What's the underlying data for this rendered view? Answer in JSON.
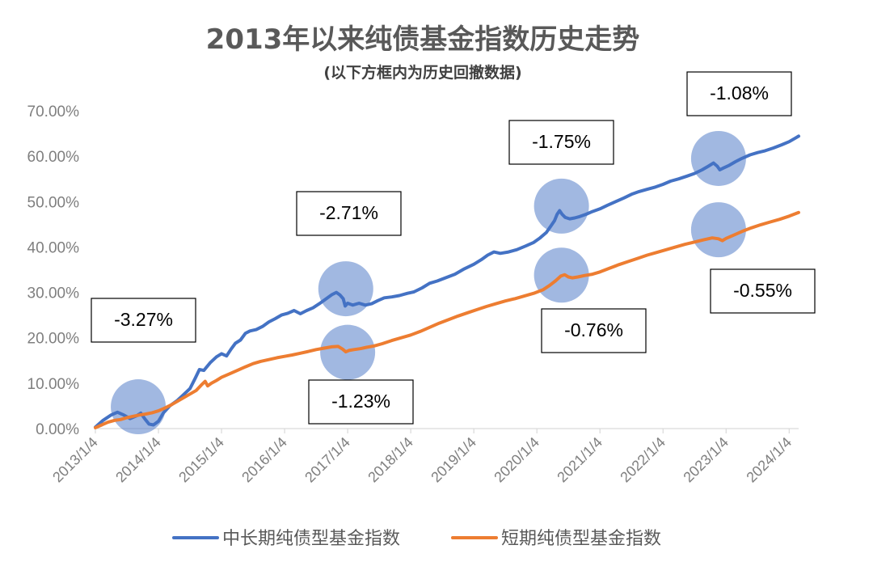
{
  "chart_data": {
    "type": "line",
    "title": "2013年以来纯债基金指数历史走势",
    "subtitle": "(以下方框内为历史回撤数据)",
    "xlabel": "",
    "ylabel": "",
    "ylim": [
      0,
      70
    ],
    "y_ticks": [
      "0.00%",
      "10.00%",
      "20.00%",
      "30.00%",
      "40.00%",
      "50.00%",
      "60.00%",
      "70.00%"
    ],
    "x_ticks": [
      "2013/1/4",
      "2014/1/4",
      "2015/1/4",
      "2016/1/4",
      "2017/1/4",
      "2018/1/4",
      "2019/1/4",
      "2020/1/4",
      "2021/1/4",
      "2022/1/4",
      "2023/1/4",
      "2024/1/4"
    ],
    "xlim": [
      2013.0,
      2024.15
    ],
    "grid": false,
    "legend_position": "bottom",
    "colors": {
      "long": "#4472c4",
      "short": "#ed7d31",
      "circle": "#4472c4"
    },
    "series": [
      {
        "name": "中长期纯债型基金指数",
        "color": "#4472c4",
        "points": [
          [
            2013.0,
            0.3
          ],
          [
            2013.12,
            1.8
          ],
          [
            2013.25,
            3.0
          ],
          [
            2013.35,
            3.6
          ],
          [
            2013.45,
            3.0
          ],
          [
            2013.55,
            2.2
          ],
          [
            2013.65,
            2.8
          ],
          [
            2013.72,
            3.4
          ],
          [
            2013.78,
            2.2
          ],
          [
            2013.85,
            1.0
          ],
          [
            2013.92,
            0.8
          ],
          [
            2014.0,
            1.6
          ],
          [
            2014.08,
            3.5
          ],
          [
            2014.18,
            5.0
          ],
          [
            2014.3,
            6.2
          ],
          [
            2014.4,
            7.5
          ],
          [
            2014.5,
            8.8
          ],
          [
            2014.58,
            11.0
          ],
          [
            2014.65,
            13.0
          ],
          [
            2014.72,
            12.8
          ],
          [
            2014.82,
            14.5
          ],
          [
            2014.92,
            15.8
          ],
          [
            2015.0,
            16.5
          ],
          [
            2015.08,
            16.0
          ],
          [
            2015.15,
            17.5
          ],
          [
            2015.22,
            18.8
          ],
          [
            2015.3,
            19.5
          ],
          [
            2015.38,
            21.0
          ],
          [
            2015.45,
            21.5
          ],
          [
            2015.55,
            21.8
          ],
          [
            2015.65,
            22.5
          ],
          [
            2015.75,
            23.5
          ],
          [
            2015.85,
            24.2
          ],
          [
            2015.95,
            25.0
          ],
          [
            2016.05,
            25.4
          ],
          [
            2016.15,
            26.0
          ],
          [
            2016.25,
            25.3
          ],
          [
            2016.35,
            26.0
          ],
          [
            2016.45,
            26.6
          ],
          [
            2016.55,
            27.5
          ],
          [
            2016.65,
            28.5
          ],
          [
            2016.75,
            29.5
          ],
          [
            2016.82,
            30.0
          ],
          [
            2016.88,
            29.4
          ],
          [
            2016.93,
            28.6
          ],
          [
            2016.96,
            27.0
          ],
          [
            2017.0,
            27.6
          ],
          [
            2017.08,
            27.2
          ],
          [
            2017.18,
            27.6
          ],
          [
            2017.28,
            27.2
          ],
          [
            2017.38,
            27.5
          ],
          [
            2017.48,
            28.2
          ],
          [
            2017.58,
            28.8
          ],
          [
            2017.7,
            29.0
          ],
          [
            2017.82,
            29.3
          ],
          [
            2017.95,
            29.8
          ],
          [
            2018.05,
            30.1
          ],
          [
            2018.18,
            31.0
          ],
          [
            2018.3,
            32.0
          ],
          [
            2018.42,
            32.5
          ],
          [
            2018.55,
            33.2
          ],
          [
            2018.7,
            34.0
          ],
          [
            2018.85,
            35.2
          ],
          [
            2019.0,
            36.2
          ],
          [
            2019.12,
            37.2
          ],
          [
            2019.22,
            38.2
          ],
          [
            2019.32,
            38.9
          ],
          [
            2019.42,
            38.6
          ],
          [
            2019.55,
            38.9
          ],
          [
            2019.68,
            39.4
          ],
          [
            2019.82,
            40.2
          ],
          [
            2019.95,
            41.0
          ],
          [
            2020.05,
            42.0
          ],
          [
            2020.15,
            43.2
          ],
          [
            2020.22,
            44.6
          ],
          [
            2020.28,
            45.8
          ],
          [
            2020.32,
            47.2
          ],
          [
            2020.36,
            48.0
          ],
          [
            2020.4,
            47.2
          ],
          [
            2020.45,
            46.5
          ],
          [
            2020.52,
            46.2
          ],
          [
            2020.6,
            46.4
          ],
          [
            2020.68,
            46.7
          ],
          [
            2020.78,
            47.2
          ],
          [
            2020.88,
            47.8
          ],
          [
            2021.0,
            48.4
          ],
          [
            2021.12,
            49.2
          ],
          [
            2021.25,
            50.0
          ],
          [
            2021.38,
            50.8
          ],
          [
            2021.5,
            51.6
          ],
          [
            2021.62,
            52.2
          ],
          [
            2021.75,
            52.7
          ],
          [
            2021.88,
            53.2
          ],
          [
            2022.0,
            53.8
          ],
          [
            2022.12,
            54.5
          ],
          [
            2022.25,
            55.0
          ],
          [
            2022.38,
            55.6
          ],
          [
            2022.5,
            56.2
          ],
          [
            2022.62,
            57.0
          ],
          [
            2022.72,
            57.8
          ],
          [
            2022.8,
            58.5
          ],
          [
            2022.86,
            57.8
          ],
          [
            2022.9,
            57.0
          ],
          [
            2022.96,
            57.4
          ],
          [
            2023.05,
            58.0
          ],
          [
            2023.15,
            58.8
          ],
          [
            2023.25,
            59.5
          ],
          [
            2023.38,
            60.3
          ],
          [
            2023.5,
            60.8
          ],
          [
            2023.62,
            61.2
          ],
          [
            2023.75,
            61.8
          ],
          [
            2023.88,
            62.5
          ],
          [
            2024.0,
            63.2
          ],
          [
            2024.1,
            64.0
          ],
          [
            2024.15,
            64.4
          ]
        ]
      },
      {
        "name": "短期纯债型基金指数",
        "color": "#ed7d31",
        "points": [
          [
            2013.0,
            0.2
          ],
          [
            2013.1,
            0.8
          ],
          [
            2013.2,
            1.4
          ],
          [
            2013.3,
            1.8
          ],
          [
            2013.4,
            2.0
          ],
          [
            2013.5,
            2.4
          ],
          [
            2013.6,
            2.7
          ],
          [
            2013.7,
            3.0
          ],
          [
            2013.8,
            3.2
          ],
          [
            2013.9,
            3.5
          ],
          [
            2014.0,
            3.9
          ],
          [
            2014.1,
            4.5
          ],
          [
            2014.2,
            5.2
          ],
          [
            2014.3,
            6.0
          ],
          [
            2014.4,
            6.8
          ],
          [
            2014.5,
            7.6
          ],
          [
            2014.6,
            8.4
          ],
          [
            2014.68,
            9.6
          ],
          [
            2014.74,
            10.4
          ],
          [
            2014.78,
            9.4
          ],
          [
            2014.84,
            10.0
          ],
          [
            2014.92,
            10.6
          ],
          [
            2015.0,
            11.3
          ],
          [
            2015.12,
            12.0
          ],
          [
            2015.25,
            12.8
          ],
          [
            2015.38,
            13.6
          ],
          [
            2015.5,
            14.3
          ],
          [
            2015.62,
            14.8
          ],
          [
            2015.75,
            15.2
          ],
          [
            2015.88,
            15.6
          ],
          [
            2016.0,
            15.9
          ],
          [
            2016.12,
            16.2
          ],
          [
            2016.25,
            16.6
          ],
          [
            2016.38,
            17.0
          ],
          [
            2016.5,
            17.4
          ],
          [
            2016.62,
            17.7
          ],
          [
            2016.75,
            18.0
          ],
          [
            2016.85,
            18.1
          ],
          [
            2016.92,
            17.5
          ],
          [
            2016.97,
            16.9
          ],
          [
            2017.02,
            17.2
          ],
          [
            2017.1,
            17.4
          ],
          [
            2017.2,
            17.6
          ],
          [
            2017.3,
            17.9
          ],
          [
            2017.42,
            18.2
          ],
          [
            2017.55,
            18.7
          ],
          [
            2017.7,
            19.4
          ],
          [
            2017.85,
            20.0
          ],
          [
            2018.0,
            20.6
          ],
          [
            2018.15,
            21.4
          ],
          [
            2018.3,
            22.3
          ],
          [
            2018.45,
            23.2
          ],
          [
            2018.6,
            24.0
          ],
          [
            2018.75,
            24.8
          ],
          [
            2018.9,
            25.5
          ],
          [
            2019.05,
            26.2
          ],
          [
            2019.2,
            26.9
          ],
          [
            2019.35,
            27.5
          ],
          [
            2019.5,
            28.1
          ],
          [
            2019.65,
            28.6
          ],
          [
            2019.8,
            29.2
          ],
          [
            2019.95,
            29.8
          ],
          [
            2020.1,
            30.6
          ],
          [
            2020.2,
            31.5
          ],
          [
            2020.3,
            32.6
          ],
          [
            2020.38,
            33.6
          ],
          [
            2020.44,
            33.9
          ],
          [
            2020.5,
            33.4
          ],
          [
            2020.56,
            33.2
          ],
          [
            2020.65,
            33.4
          ],
          [
            2020.75,
            33.7
          ],
          [
            2020.88,
            34.0
          ],
          [
            2021.0,
            34.5
          ],
          [
            2021.15,
            35.3
          ],
          [
            2021.3,
            36.1
          ],
          [
            2021.45,
            36.8
          ],
          [
            2021.6,
            37.5
          ],
          [
            2021.75,
            38.2
          ],
          [
            2021.9,
            38.8
          ],
          [
            2022.05,
            39.4
          ],
          [
            2022.2,
            40.0
          ],
          [
            2022.35,
            40.6
          ],
          [
            2022.5,
            41.1
          ],
          [
            2022.65,
            41.6
          ],
          [
            2022.78,
            42.0
          ],
          [
            2022.88,
            41.8
          ],
          [
            2022.94,
            41.4
          ],
          [
            2023.0,
            41.9
          ],
          [
            2023.12,
            42.6
          ],
          [
            2023.25,
            43.4
          ],
          [
            2023.4,
            44.2
          ],
          [
            2023.55,
            44.9
          ],
          [
            2023.7,
            45.5
          ],
          [
            2023.85,
            46.1
          ],
          [
            2024.0,
            46.8
          ],
          [
            2024.15,
            47.6
          ]
        ]
      }
    ],
    "annotations": [
      {
        "label": "-3.27%",
        "circle": [
          2013.68,
          4.8
        ]
      },
      {
        "label": "-2.71%",
        "circle": [
          2016.97,
          30.8
        ]
      },
      {
        "label": "-1.23%",
        "circle": [
          2017.0,
          16.8
        ]
      },
      {
        "label": "-1.75%",
        "circle": [
          2020.39,
          49.0
        ]
      },
      {
        "label": "-0.76%",
        "circle": [
          2020.39,
          33.8
        ]
      },
      {
        "label": "-1.08%",
        "circle": [
          2022.88,
          59.5
        ]
      },
      {
        "label": "-0.55%",
        "circle": [
          2022.88,
          43.8
        ]
      }
    ]
  }
}
